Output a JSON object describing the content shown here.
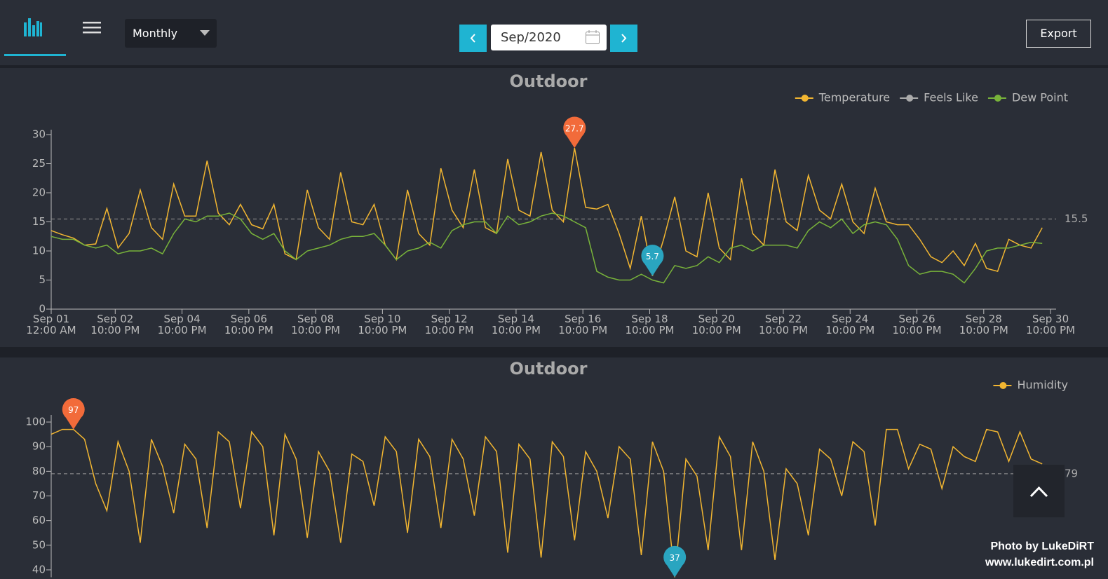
{
  "toolbar": {
    "view": "Monthly",
    "date": "Sep/2020",
    "export": "Export"
  },
  "watermark": [
    "Photo by LukeDiRT",
    "www.lukedirt.com.pl"
  ],
  "chart_data": [
    {
      "type": "line",
      "title": "Outdoor",
      "legend": "top-right",
      "x": [
        0,
        8,
        16,
        24,
        32,
        40,
        48,
        56,
        64,
        72,
        80,
        88,
        96,
        104,
        112,
        120,
        128,
        136,
        144,
        152,
        160,
        168,
        176,
        184,
        192,
        200,
        208,
        216,
        224,
        232,
        240,
        248,
        256,
        264,
        272,
        280,
        288,
        296,
        304,
        312,
        320,
        328,
        336,
        344,
        352,
        360,
        368,
        376,
        384,
        392,
        400,
        408,
        416,
        424,
        432,
        440,
        448,
        456,
        464,
        472,
        480,
        488,
        496,
        504,
        512,
        520,
        528,
        536,
        544,
        552,
        560,
        568,
        576,
        584,
        592,
        600,
        608,
        616,
        624,
        632,
        640,
        648,
        656,
        664,
        672,
        680,
        688,
        696,
        704,
        712
      ],
      "xlim": [
        0,
        722
      ],
      "xticks": [
        {
          "value": 0,
          "label": "Sep 01\n12:00 AM"
        },
        {
          "value": 46,
          "label": "Sep 02\n10:00 PM"
        },
        {
          "value": 94,
          "label": "Sep 04\n10:00 PM"
        },
        {
          "value": 142,
          "label": "Sep 06\n10:00 PM"
        },
        {
          "value": 190,
          "label": "Sep 08\n10:00 PM"
        },
        {
          "value": 238,
          "label": "Sep 10\n10:00 PM"
        },
        {
          "value": 286,
          "label": "Sep 12\n10:00 PM"
        },
        {
          "value": 334,
          "label": "Sep 14\n10:00 PM"
        },
        {
          "value": 382,
          "label": "Sep 16\n10:00 PM"
        },
        {
          "value": 430,
          "label": "Sep 18\n10:00 PM"
        },
        {
          "value": 478,
          "label": "Sep 20\n10:00 PM"
        },
        {
          "value": 526,
          "label": "Sep 22\n10:00 PM"
        },
        {
          "value": 574,
          "label": "Sep 24\n10:00 PM"
        },
        {
          "value": 622,
          "label": "Sep 26\n10:00 PM"
        },
        {
          "value": 670,
          "label": "Sep 28\n10:00 PM"
        },
        {
          "value": 718,
          "label": "Sep 30\n10:00 PM"
        }
      ],
      "ylim": [
        0,
        30
      ],
      "yticks": [
        0,
        5,
        10,
        15,
        20,
        25,
        30
      ],
      "average": 15.5,
      "max_marker": {
        "x": 376,
        "value": 27.7
      },
      "min_marker": {
        "x": 432,
        "value": 5.7
      },
      "series": [
        {
          "name": "Temperature",
          "color": "#f2b631",
          "values": [
            13.5,
            12.8,
            12.2,
            11,
            11.2,
            17.3,
            10.5,
            13,
            20.5,
            14,
            12,
            21.5,
            16,
            16,
            25.5,
            16.5,
            14.5,
            18,
            14.5,
            13.8,
            18,
            9.5,
            8.5,
            20.5,
            14,
            12,
            23.5,
            15,
            14.5,
            18,
            11,
            8.5,
            20.5,
            13,
            11,
            24.2,
            17,
            14,
            24,
            14,
            13,
            25.8,
            17,
            16,
            27,
            17,
            15,
            27.7,
            17.5,
            17.2,
            18,
            13,
            7,
            16,
            5.7,
            12,
            19.3,
            10,
            9,
            20,
            10.5,
            8.5,
            22.5,
            13,
            11,
            24,
            15,
            13.5,
            23,
            17,
            15.5,
            21.5,
            15,
            13,
            20.8,
            15,
            14.5,
            14.5,
            12,
            9,
            8,
            10,
            7.5,
            11.3,
            7,
            6.5,
            12,
            11,
            10.5,
            14
          ]
        },
        {
          "name": "Feels Like",
          "color": "#aaaaaa",
          "values": [
            null,
            null,
            null,
            null,
            null,
            null,
            null,
            null,
            null,
            null,
            null,
            null,
            null,
            null,
            null,
            null,
            null,
            null,
            null,
            null,
            null,
            null,
            null,
            null,
            null,
            null,
            null,
            null,
            null,
            null,
            null,
            null,
            null,
            null,
            null,
            null,
            null,
            null,
            null,
            null,
            null,
            null,
            null,
            null,
            null,
            null,
            null,
            null,
            null,
            null,
            null,
            null,
            null,
            null,
            null,
            null,
            null,
            null,
            null,
            null,
            null,
            null,
            null,
            null,
            null,
            null,
            null,
            null,
            null,
            null,
            null,
            null,
            null,
            null,
            null,
            null,
            null,
            null,
            null,
            null,
            null,
            null,
            null,
            null,
            null,
            null,
            null,
            null,
            null,
            null
          ]
        },
        {
          "name": "Dew Point",
          "color": "#78b33a",
          "values": [
            12.5,
            12,
            12,
            11,
            10.5,
            11,
            9.5,
            10,
            10,
            10.5,
            9.5,
            13,
            15.5,
            15,
            16,
            16,
            16.5,
            15.5,
            13,
            12,
            13,
            10,
            8.5,
            10,
            10.5,
            11,
            12,
            12.5,
            12.5,
            13,
            11,
            8.5,
            10,
            10.5,
            11.5,
            10.5,
            13.5,
            14.5,
            15,
            15,
            13,
            16,
            14.5,
            15,
            16,
            16.5,
            16,
            15,
            14,
            6.5,
            5.5,
            5,
            5,
            6,
            5,
            4.5,
            7.5,
            7,
            7.5,
            9,
            8,
            10.5,
            11,
            10,
            11,
            11,
            11,
            10.5,
            13.5,
            15,
            14,
            15.5,
            13,
            14.5,
            15,
            14.5,
            12,
            7.5,
            6,
            6.5,
            6.5,
            6,
            4.5,
            7,
            10,
            10.5,
            10.5,
            11,
            11.5,
            11.3
          ]
        }
      ]
    },
    {
      "type": "line",
      "title": "Outdoor",
      "legend": "top-right",
      "x": [
        0,
        8,
        16,
        24,
        32,
        40,
        48,
        56,
        64,
        72,
        80,
        88,
        96,
        104,
        112,
        120,
        128,
        136,
        144,
        152,
        160,
        168,
        176,
        184,
        192,
        200,
        208,
        216,
        224,
        232,
        240,
        248,
        256,
        264,
        272,
        280,
        288,
        296,
        304,
        312,
        320,
        328,
        336,
        344,
        352,
        360,
        368,
        376,
        384,
        392,
        400,
        408,
        416,
        424,
        432,
        440,
        448,
        456,
        464,
        472,
        480,
        488,
        496,
        504,
        512,
        520,
        528,
        536,
        544,
        552,
        560,
        568,
        576,
        584,
        592,
        600,
        608,
        616,
        624,
        632,
        640,
        648,
        656,
        664,
        672,
        680,
        688,
        696,
        704,
        712
      ],
      "xlim": [
        0,
        722
      ],
      "ylim": [
        37,
        104
      ],
      "yticks": [
        40,
        50,
        60,
        70,
        80,
        90,
        100
      ],
      "average": 79,
      "max_marker": {
        "x": 16,
        "value": 97
      },
      "min_marker": {
        "x": 448,
        "value": 37
      },
      "series": [
        {
          "name": "Humidity",
          "color": "#f2b631",
          "values": [
            95,
            97,
            97,
            93,
            75,
            64,
            92,
            80,
            51,
            93,
            82,
            63,
            91,
            85,
            57,
            96,
            92,
            65,
            96,
            90,
            54,
            95,
            85,
            53,
            88,
            80,
            51,
            87,
            84,
            66,
            94,
            88,
            55,
            93,
            86,
            57,
            93,
            85,
            62,
            94,
            88,
            47,
            91,
            85,
            45,
            92,
            86,
            52,
            88,
            80,
            61,
            90,
            85,
            46,
            92,
            80,
            37,
            85,
            78,
            48,
            94,
            86,
            48,
            92,
            80,
            44,
            81,
            75,
            54,
            89,
            85,
            70,
            92,
            88,
            58,
            97,
            97,
            81,
            91,
            89,
            73,
            90,
            86,
            84,
            97,
            96,
            84,
            96,
            85,
            83
          ]
        }
      ]
    }
  ]
}
